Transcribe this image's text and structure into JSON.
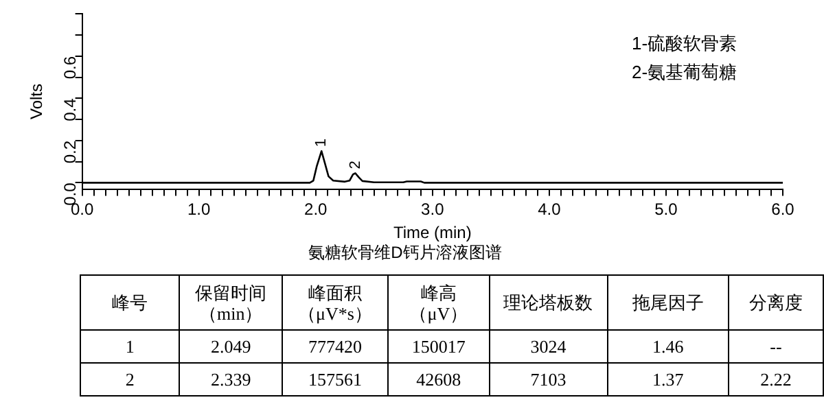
{
  "chart_data": [
    {
      "type": "line",
      "title": "氨糖软骨维D钙片溶液图谱",
      "xlabel": "Time (min)",
      "ylabel": "Volts",
      "x": [
        0,
        1.95,
        1.98,
        2.01,
        2.05,
        2.08,
        2.11,
        2.15,
        2.25,
        2.29,
        2.32,
        2.34,
        2.37,
        2.4,
        2.5,
        2.75,
        2.78,
        2.9,
        2.93,
        6
      ],
      "series": [
        {
          "color": "#000000",
          "values": [
            0,
            0,
            0.01,
            0.08,
            0.15,
            0.09,
            0.03,
            0.01,
            0.005,
            0.01,
            0.04,
            0.045,
            0.025,
            0.008,
            0.002,
            0.002,
            0.006,
            0.006,
            0,
            0
          ]
        }
      ],
      "xlim": [
        0,
        6
      ],
      "ylim": [
        -0.03,
        0.8
      ],
      "xticks": [
        {
          "value": 0,
          "label": "0.0"
        },
        {
          "value": 0.1,
          "label": null
        },
        {
          "value": 0.2,
          "label": null
        },
        {
          "value": 0.3,
          "label": null
        },
        {
          "value": 0.4,
          "label": null
        },
        {
          "value": 0.5,
          "label": null
        },
        {
          "value": 0.6,
          "label": null
        },
        {
          "value": 0.7,
          "label": null
        },
        {
          "value": 0.8,
          "label": null
        },
        {
          "value": 0.9,
          "label": null
        },
        {
          "value": 1,
          "label": "1.0"
        },
        {
          "value": 1.1,
          "label": null
        },
        {
          "value": 1.2,
          "label": null
        },
        {
          "value": 1.3,
          "label": null
        },
        {
          "value": 1.4,
          "label": null
        },
        {
          "value": 1.5,
          "label": null
        },
        {
          "value": 1.6,
          "label": null
        },
        {
          "value": 1.7,
          "label": null
        },
        {
          "value": 1.8,
          "label": null
        },
        {
          "value": 1.9,
          "label": null
        },
        {
          "value": 2,
          "label": "2.0"
        },
        {
          "value": 2.1,
          "label": null
        },
        {
          "value": 2.2,
          "label": null
        },
        {
          "value": 2.3,
          "label": null
        },
        {
          "value": 2.4,
          "label": null
        },
        {
          "value": 2.5,
          "label": null
        },
        {
          "value": 2.6,
          "label": null
        },
        {
          "value": 2.7,
          "label": null
        },
        {
          "value": 2.8,
          "label": null
        },
        {
          "value": 2.9,
          "label": null
        },
        {
          "value": 3,
          "label": "3.0"
        },
        {
          "value": 3.1,
          "label": null
        },
        {
          "value": 3.2,
          "label": null
        },
        {
          "value": 3.3,
          "label": null
        },
        {
          "value": 3.4,
          "label": null
        },
        {
          "value": 3.5,
          "label": null
        },
        {
          "value": 3.6,
          "label": null
        },
        {
          "value": 3.7,
          "label": null
        },
        {
          "value": 3.8,
          "label": null
        },
        {
          "value": 3.9,
          "label": null
        },
        {
          "value": 4,
          "label": "4.0"
        },
        {
          "value": 4.1,
          "label": null
        },
        {
          "value": 4.2,
          "label": null
        },
        {
          "value": 4.3,
          "label": null
        },
        {
          "value": 4.4,
          "label": null
        },
        {
          "value": 4.5,
          "label": null
        },
        {
          "value": 4.6,
          "label": null
        },
        {
          "value": 4.7,
          "label": null
        },
        {
          "value": 4.8,
          "label": null
        },
        {
          "value": 4.9,
          "label": null
        },
        {
          "value": 5,
          "label": "5.0"
        },
        {
          "value": 5.1,
          "label": null
        },
        {
          "value": 5.2,
          "label": null
        },
        {
          "value": 5.3,
          "label": null
        },
        {
          "value": 5.4,
          "label": null
        },
        {
          "value": 5.5,
          "label": null
        },
        {
          "value": 5.6,
          "label": null
        },
        {
          "value": 5.7,
          "label": null
        },
        {
          "value": 5.8,
          "label": null
        },
        {
          "value": 5.9,
          "label": null
        },
        {
          "value": 6,
          "label": "6.0"
        }
      ],
      "yticks": [
        {
          "value": 0,
          "label": "0.0"
        },
        {
          "value": 0.1,
          "label": null
        },
        {
          "value": 0.2,
          "label": "0.2"
        },
        {
          "value": 0.3,
          "label": null
        },
        {
          "value": 0.4,
          "label": "0.4"
        },
        {
          "value": 0.5,
          "label": null
        },
        {
          "value": 0.6,
          "label": "0.6"
        },
        {
          "value": 0.7,
          "label": null
        },
        {
          "value": 0.8,
          "label": null
        }
      ],
      "annotations": [
        {
          "text": "1",
          "x": 2.05,
          "y": 0.15
        },
        {
          "text": "2",
          "x": 2.34,
          "y": 0.045
        },
        "1-硫酸软骨素",
        "2-氨基葡萄糖"
      ],
      "marker": "none",
      "line_style": "solid",
      "grid": false,
      "legend": false
    },
    {
      "type": "other",
      "annotations": [
        "峰号",
        "保留时间（min）",
        "峰面积（μV*s）",
        "峰高（μV）",
        "理论塔板数",
        "拖尾因子",
        "分离度",
        "1",
        "2.049",
        "777420",
        "150017",
        "3024",
        "1.46",
        "--",
        "2",
        "2.339",
        "157561",
        "42608",
        "7103",
        "1.37",
        "2.22"
      ]
    }
  ]
}
